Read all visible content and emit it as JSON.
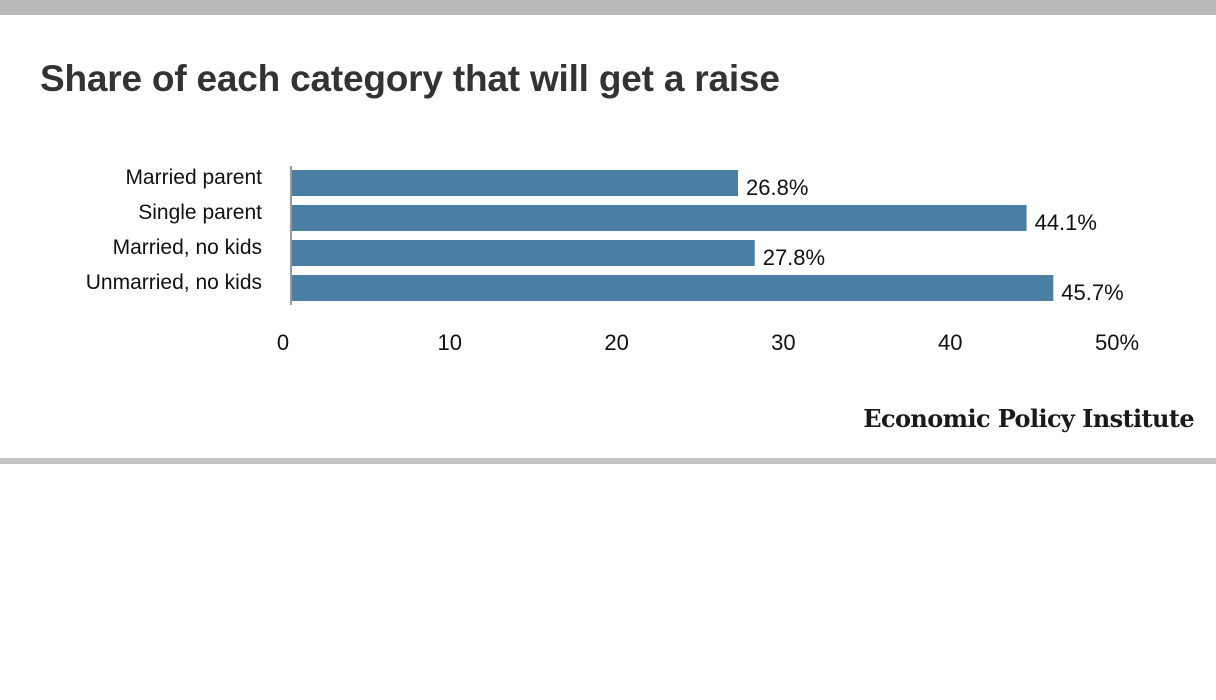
{
  "chart_data": {
    "type": "bar",
    "orientation": "horizontal",
    "title": "Share of each category that will get a raise",
    "categories": [
      "Married parent",
      "Single parent",
      "Married, no kids",
      "Unmarried, no kids"
    ],
    "values": [
      26.8,
      44.1,
      27.8,
      45.7
    ],
    "value_labels": [
      "26.8%",
      "44.1%",
      "27.8%",
      "45.7%"
    ],
    "xlim": [
      0,
      50
    ],
    "x_ticks": [
      0,
      10,
      20,
      30,
      40,
      50
    ],
    "x_tick_labels": [
      "0",
      "10",
      "20",
      "30",
      "40",
      "50%"
    ],
    "xlabel": "",
    "ylabel": "",
    "grid": false,
    "legend": "none",
    "bar_color": "#4a7fa3"
  },
  "footer": {
    "source": "Economic Policy Institute"
  },
  "colors": {
    "top_rule": "#b9b9b9",
    "bottom_rule": "#c4c4c4",
    "title": "#333333",
    "axis": "#999999"
  }
}
